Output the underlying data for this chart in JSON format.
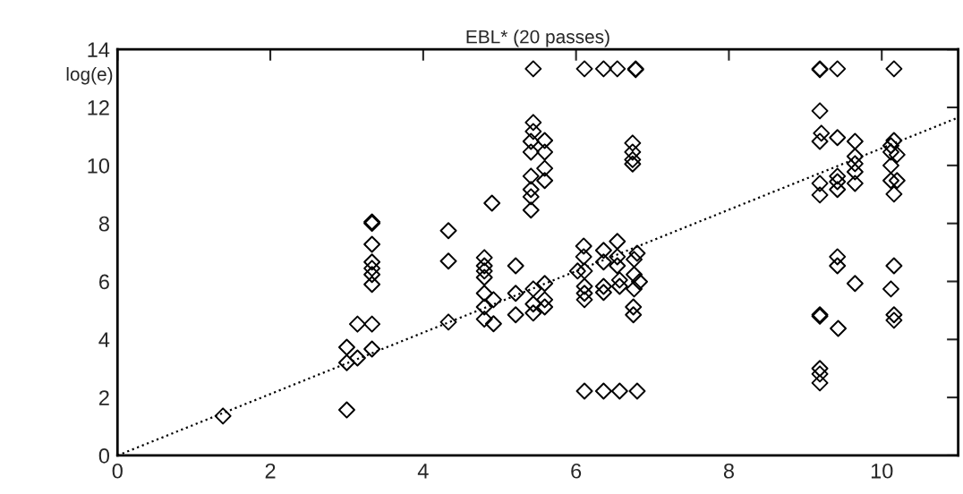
{
  "chart_data": {
    "type": "scatter",
    "title": "EBL* (20 passes)",
    "ylabel": "log(e)",
    "xlim": [
      0,
      11
    ],
    "ylim": [
      0,
      14
    ],
    "xticks": [
      0,
      2,
      4,
      6,
      8,
      10
    ],
    "yticks": [
      0,
      2,
      4,
      6,
      8,
      10,
      12,
      14
    ],
    "grid": false,
    "series": [
      {
        "color": "#000000",
        "marker": "diamond",
        "x": [
          1.38,
          3.0,
          3.0,
          3.0,
          3.14,
          3.14,
          3.33,
          3.33,
          3.33,
          3.33,
          3.33,
          3.33,
          3.33,
          3.33,
          3.33,
          4.33,
          4.33,
          4.33,
          4.8,
          4.8,
          4.8,
          4.8,
          4.8,
          4.92,
          4.8,
          4.8,
          4.92,
          4.9,
          5.21,
          5.21,
          5.21,
          5.44,
          5.44,
          5.44,
          5.41,
          5.41,
          5.59,
          5.59,
          5.59,
          5.59,
          5.41,
          5.41,
          5.41,
          5.41,
          5.44,
          5.44,
          5.44,
          5.59,
          5.59,
          5.59,
          6.11,
          6.36,
          6.54,
          6.78,
          6.78,
          6.74,
          6.74,
          6.74,
          6.74,
          6.11,
          6.36,
          6.57,
          6.8,
          6.1,
          6.1,
          6.02,
          6.11,
          6.11,
          6.11,
          6.11,
          6.36,
          6.36,
          6.36,
          6.36,
          6.54,
          6.54,
          6.54,
          6.57,
          6.57,
          6.8,
          6.76,
          6.76,
          6.83,
          6.76,
          6.75,
          6.75,
          9.19,
          9.19,
          9.42,
          9.19,
          10.16,
          9.21,
          9.19,
          9.42,
          9.65,
          9.65,
          9.65,
          9.65,
          9.65,
          9.42,
          9.42,
          9.42,
          9.19,
          9.19,
          10.16,
          10.12,
          10.12,
          10.2,
          10.12,
          10.12,
          10.2,
          10.16,
          9.42,
          9.42,
          9.65,
          10.16,
          10.12,
          10.16,
          10.16,
          9.19,
          9.19,
          9.43,
          9.19,
          9.19,
          9.19
        ],
        "values": [
          1.36,
          1.57,
          3.73,
          3.2,
          3.36,
          4.53,
          4.53,
          3.67,
          8.05,
          8.0,
          7.28,
          6.67,
          6.45,
          6.24,
          5.9,
          7.75,
          6.7,
          4.6,
          6.82,
          6.54,
          6.36,
          6.14,
          5.59,
          5.37,
          5.12,
          4.7,
          4.54,
          8.7,
          6.54,
          5.59,
          4.85,
          13.33,
          11.48,
          11.17,
          10.83,
          10.46,
          10.86,
          10.46,
          9.9,
          9.48,
          9.63,
          9.17,
          8.92,
          8.46,
          5.74,
          5.22,
          4.91,
          5.93,
          5.37,
          5.12,
          13.33,
          13.33,
          13.33,
          13.33,
          13.3,
          10.77,
          10.46,
          10.2,
          10.05,
          2.22,
          2.22,
          2.22,
          2.22,
          7.22,
          6.85,
          6.36,
          6.36,
          5.83,
          5.59,
          5.37,
          7.07,
          6.67,
          5.83,
          5.62,
          7.38,
          6.85,
          6.54,
          6.05,
          5.83,
          6.97,
          6.76,
          6.24,
          5.99,
          5.74,
          5.12,
          4.85,
          13.33,
          13.3,
          13.33,
          11.88,
          13.33,
          11.11,
          10.83,
          10.96,
          10.83,
          10.31,
          10.06,
          9.78,
          9.38,
          9.63,
          9.44,
          9.17,
          9.38,
          8.98,
          10.86,
          10.68,
          10.46,
          10.37,
          10.0,
          9.48,
          9.48,
          9.01,
          6.85,
          6.54,
          5.93,
          6.54,
          5.74,
          4.85,
          4.66,
          4.85,
          4.8,
          4.38,
          3.0,
          2.81,
          2.5
        ]
      },
      {
        "type": "line",
        "color": "#000000",
        "marker": "none",
        "line_style": "dotted",
        "x": [
          0,
          11
        ],
        "values": [
          0,
          11.65
        ]
      }
    ]
  }
}
